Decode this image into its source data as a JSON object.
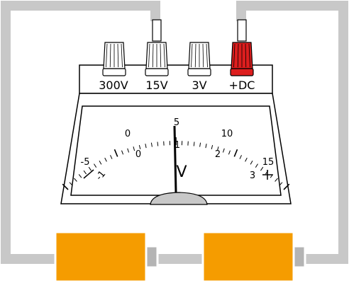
{
  "terminals": [
    {
      "label": "300V",
      "color": "#ffffff",
      "plug": false
    },
    {
      "label": "15V",
      "color": "#ffffff",
      "plug": true
    },
    {
      "label": "3V",
      "color": "#ffffff",
      "plug": false
    },
    {
      "label": "+DC",
      "color": "#dd1e1e",
      "plug": true
    }
  ],
  "scale": {
    "unit": "V",
    "range_15": {
      "left": "-5",
      "labels": [
        "0",
        "5",
        "10"
      ],
      "right": "15"
    },
    "range_3": {
      "left": "-1",
      "labels": [
        "0",
        "1",
        "2"
      ],
      "right": "3"
    },
    "minus_symbol": "−",
    "plus_symbol": "+",
    "needle_value_15V_range": 5,
    "needle_value_3V_range": 1
  },
  "colors": {
    "wire": "#c8c8c8",
    "battery": "#f59c00",
    "battery_terminal": "#b4b4b4",
    "red_terminal": "#dd1e1e",
    "pivot": "#c8c8c8"
  },
  "batteries": [
    {
      "name": "battery-left"
    },
    {
      "name": "battery-right"
    }
  ]
}
